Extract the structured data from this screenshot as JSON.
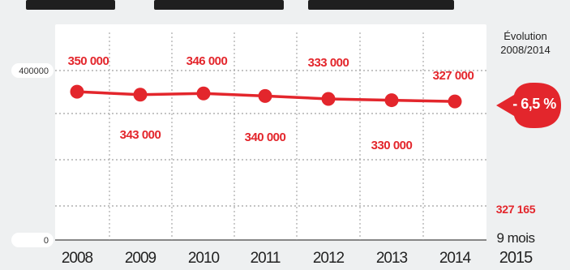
{
  "chart_data": {
    "type": "line",
    "categories": [
      "2008",
      "2009",
      "2010",
      "2011",
      "2012",
      "2013",
      "2014"
    ],
    "series": [
      {
        "values": [
          350000,
          343000,
          346000,
          340000,
          333000,
          330000,
          327000
        ]
      }
    ],
    "data_labels": [
      "350 000",
      "343 000",
      "346 000",
      "340 000",
      "333 000",
      "330 000",
      "327 000"
    ],
    "y_tick_labels": [
      "400000",
      "0"
    ],
    "ylim": [
      0,
      400000
    ],
    "grid": true,
    "color": "#e3262c"
  },
  "side_panel": {
    "evolution_title_line1": "Évolution",
    "evolution_title_line2": "2008/2014",
    "evolution_value": "- 6,5 %",
    "value_2015": "327 165",
    "mois_label": "9 mois",
    "year_2015": "2015"
  }
}
